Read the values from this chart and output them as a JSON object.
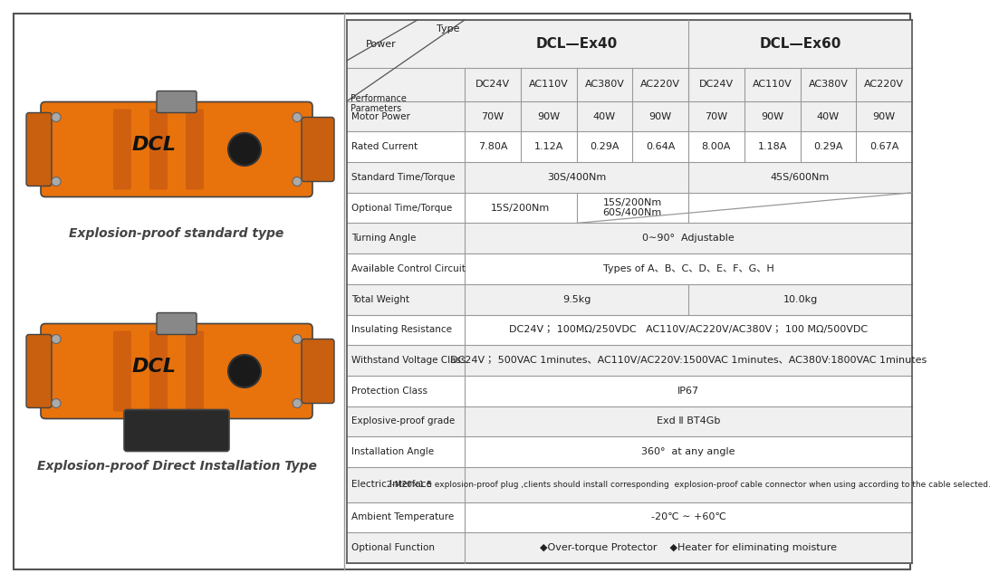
{
  "fig_width": 10.0,
  "fig_height": 6.24,
  "bg_color": "#ffffff",
  "type_label": "Type",
  "power_label": "Power",
  "dcl_ex40_label": "DCL—Ex40",
  "dcl_ex60_label": "DCL—Ex60",
  "sub_cols": [
    "DC24V",
    "AC110V",
    "AC380V",
    "AC220V",
    "DC24V",
    "AC110V",
    "AC380V",
    "AC220V"
  ],
  "rows": [
    {
      "param": "Motor Power",
      "values": [
        "70W",
        "90W",
        "40W",
        "90W",
        "70W",
        "90W",
        "40W",
        "90W"
      ],
      "span": false
    },
    {
      "param": "Rated Current",
      "values": [
        "7.80A",
        "1.12A",
        "0.29A",
        "0.64A",
        "8.00A",
        "1.18A",
        "0.29A",
        "0.67A"
      ],
      "span": false
    },
    {
      "param": "Standard Time/Torque",
      "values": [
        "30S/400Nm",
        "45S/600Nm"
      ],
      "span": true,
      "span_cols": [
        4,
        4
      ]
    },
    {
      "param": "Optional Time/Torque",
      "values": [
        "15S/200Nm",
        "15S/200Nm\n60S/400Nm",
        ""
      ],
      "span": true,
      "span_cols": [
        2,
        2,
        4
      ],
      "has_diagonal": true
    },
    {
      "param": "Turning Angle",
      "values": [
        "0∼90°  Adjustable"
      ],
      "span": true,
      "span_cols": [
        8
      ]
    },
    {
      "param": "Available Control Circuit",
      "values": [
        "Types of A、B、C、D、E、F、G、H"
      ],
      "span": true,
      "span_cols": [
        8
      ]
    },
    {
      "param": "Total Weight",
      "values": [
        "9.5kg",
        "10.0kg"
      ],
      "span": true,
      "span_cols": [
        4,
        4
      ]
    },
    {
      "param": "Insulating Resistance",
      "values": [
        "DC24V； 100MΩ/250VDC   AC110V/AC220V/AC380V； 100 MΩ/500VDC"
      ],
      "span": true,
      "span_cols": [
        8
      ]
    },
    {
      "param": "Withstand Voltage Class",
      "values": [
        "DC24V； 500VAC 1minutes、AC110V/AC220V:1500VAC 1minutes、AC380V:1800VAC 1minutes"
      ],
      "span": true,
      "span_cols": [
        8
      ]
    },
    {
      "param": "Protection Class",
      "values": [
        "IP67"
      ],
      "span": true,
      "span_cols": [
        8
      ]
    },
    {
      "param": "Explosive-proof grade",
      "values": [
        "Exd Ⅱ BT4Gb"
      ],
      "span": true,
      "span_cols": [
        8
      ]
    },
    {
      "param": "Installation Angle",
      "values": [
        "360°  at any angle"
      ],
      "span": true,
      "span_cols": [
        8
      ]
    },
    {
      "param": "Electric Interface",
      "values": [
        "2-M20×1.5 explosion-proof plug ,clients should install corresponding  explosion-proof cable connector when using according to the cable selected."
      ],
      "span": true,
      "span_cols": [
        8
      ],
      "small_text": true
    },
    {
      "param": "Ambient Temperature",
      "values": [
        "-20℃ ∼ +60℃"
      ],
      "span": true,
      "span_cols": [
        8
      ]
    },
    {
      "param": "Optional Function",
      "values": [
        "◆Over-torque Protector    ◆Heater for eliminating moisture"
      ],
      "span": true,
      "span_cols": [
        8
      ]
    }
  ],
  "image1_caption": "Explosion-proof standard type",
  "image2_caption": "Explosion-proof Direct Installation Type"
}
